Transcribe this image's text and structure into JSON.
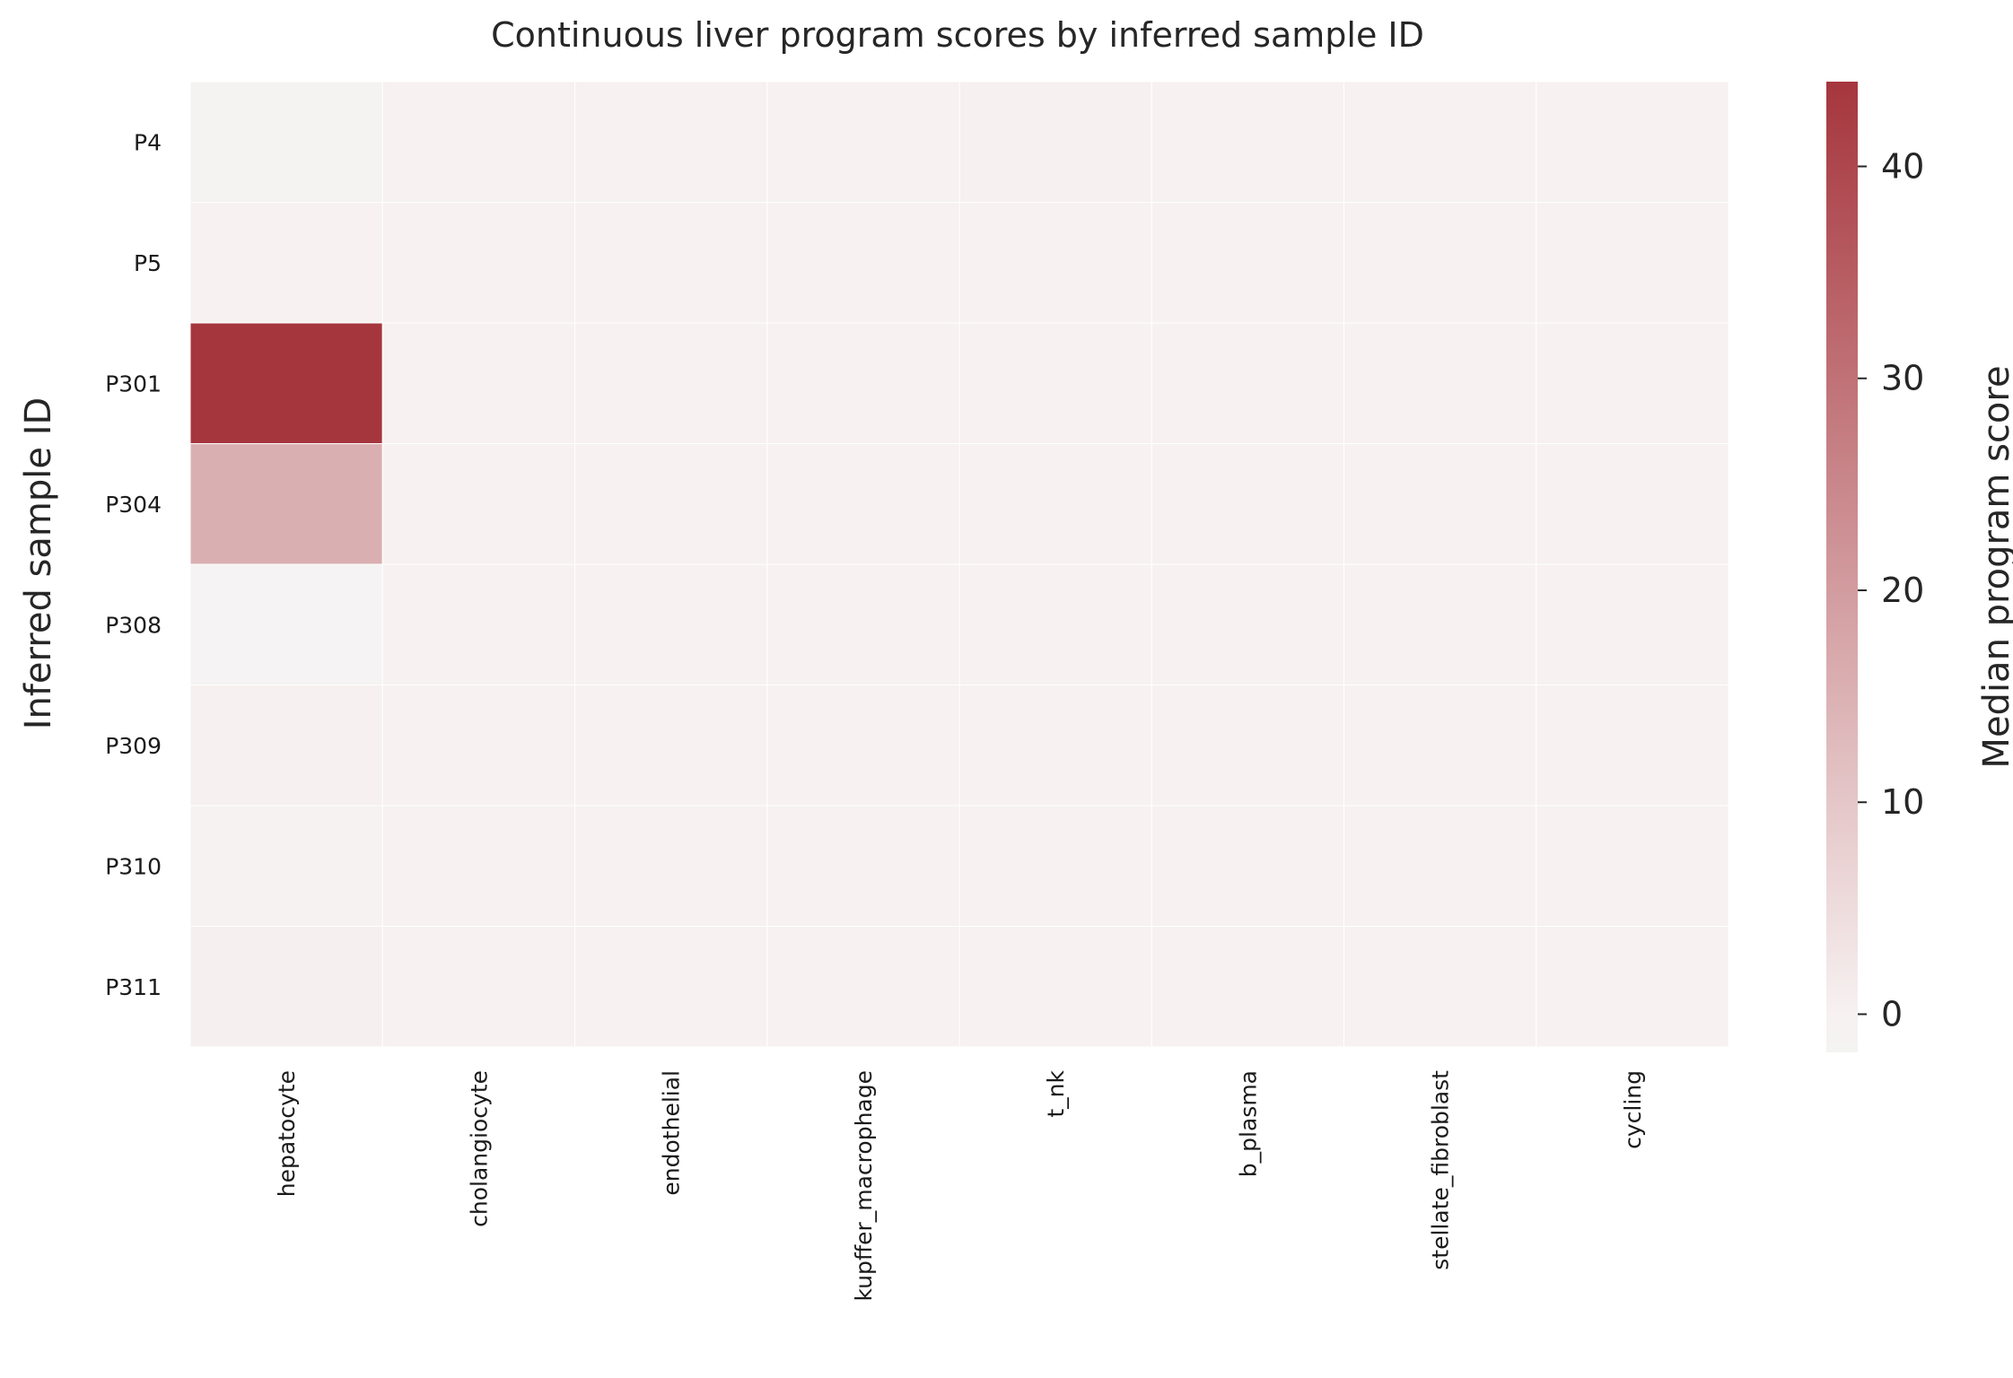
{
  "chart_data": {
    "type": "heatmap",
    "title": "Continuous liver program scores by inferred sample ID",
    "xlabel": "",
    "ylabel": "Inferred sample ID",
    "rows": [
      "P4",
      "P5",
      "P301",
      "P304",
      "P308",
      "P309",
      "P310",
      "P311"
    ],
    "columns": [
      "hepatocyte",
      "cholangiocyte",
      "endothelial",
      "kupffer_macrophage",
      "t_nk",
      "b_plasma",
      "stellate_fibroblast",
      "cycling"
    ],
    "values": [
      [
        -1.2,
        0.0,
        0.0,
        0.0,
        0.2,
        0.0,
        0.0,
        0.0
      ],
      [
        -0.3,
        0.0,
        0.0,
        0.0,
        0.1,
        0.0,
        0.0,
        0.0
      ],
      [
        44.0,
        0.1,
        0.0,
        0.0,
        0.0,
        0.0,
        0.0,
        0.0
      ],
      [
        15.5,
        0.0,
        0.0,
        0.0,
        0.0,
        0.0,
        0.0,
        0.0
      ],
      [
        -1.4,
        0.0,
        0.0,
        0.0,
        0.0,
        0.0,
        0.0,
        0.0
      ],
      [
        0.3,
        0.0,
        0.0,
        0.0,
        0.0,
        0.0,
        0.0,
        0.0
      ],
      [
        -0.6,
        0.0,
        0.0,
        0.0,
        0.0,
        0.0,
        0.0,
        0.0
      ],
      [
        0.4,
        0.0,
        0.0,
        0.0,
        0.0,
        0.0,
        0.0,
        0.0
      ]
    ],
    "colorbar": {
      "label": "Median program score",
      "vmin": -1.8,
      "vmax": 44.0,
      "ticks": [
        0,
        10,
        20,
        30,
        40
      ],
      "colors": {
        "low": "#f4f4f3",
        "mid": "#f7f1f1",
        "high": "#a6363d"
      }
    }
  }
}
